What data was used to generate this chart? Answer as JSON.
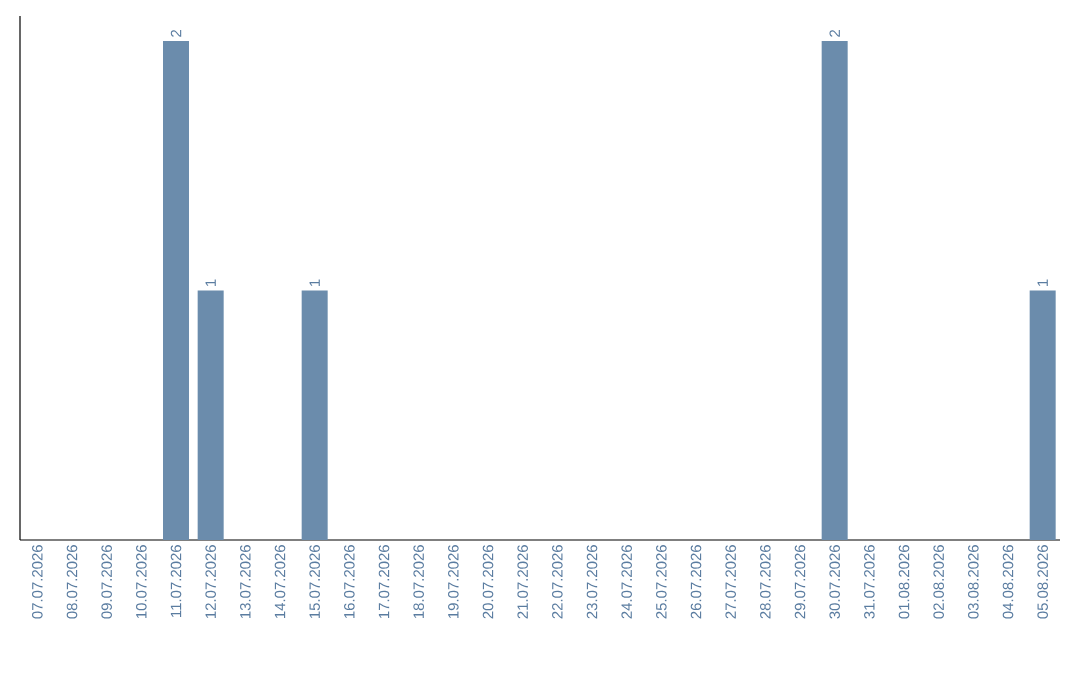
{
  "chart_data": {
    "type": "bar",
    "categories": [
      "07.07.2026",
      "08.07.2026",
      "09.07.2026",
      "10.07.2026",
      "11.07.2026",
      "12.07.2026",
      "13.07.2026",
      "14.07.2026",
      "15.07.2026",
      "16.07.2026",
      "17.07.2026",
      "18.07.2026",
      "19.07.2026",
      "20.07.2026",
      "21.07.2026",
      "22.07.2026",
      "23.07.2026",
      "24.07.2026",
      "25.07.2026",
      "26.07.2026",
      "27.07.2026",
      "28.07.2026",
      "29.07.2026",
      "30.07.2026",
      "31.07.2026",
      "01.08.2026",
      "02.08.2026",
      "03.08.2026",
      "04.08.2026",
      "05.08.2026"
    ],
    "values": [
      0,
      0,
      0,
      0,
      2,
      1,
      0,
      0,
      1,
      0,
      0,
      0,
      0,
      0,
      0,
      0,
      0,
      0,
      0,
      0,
      0,
      0,
      0,
      2,
      0,
      0,
      0,
      0,
      0,
      1
    ],
    "value_labels": [
      null,
      null,
      null,
      null,
      "2",
      "1",
      null,
      null,
      "1",
      null,
      null,
      null,
      null,
      null,
      null,
      null,
      null,
      null,
      null,
      null,
      null,
      null,
      null,
      "2",
      null,
      null,
      null,
      null,
      null,
      "1"
    ],
    "color": "#6b8cac",
    "ylim": [
      0,
      2.1
    ],
    "tick_labels": "x"
  }
}
